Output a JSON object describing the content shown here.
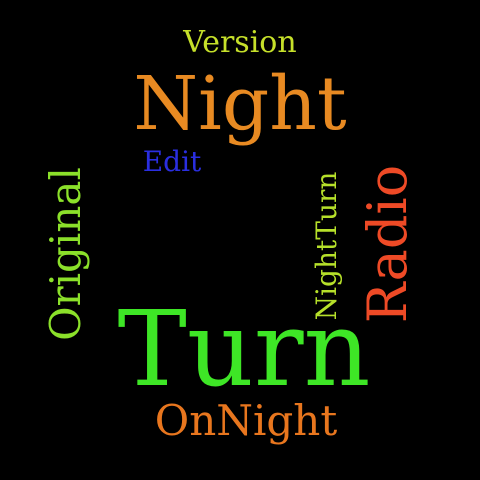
{
  "background_color": "#000000",
  "words": [
    {
      "id": "version",
      "text": "Version",
      "color": "#c6e02a"
    },
    {
      "id": "night",
      "text": "Night",
      "color": "#e88a22"
    },
    {
      "id": "edit",
      "text": "Edit",
      "color": "#2a2ee0"
    },
    {
      "id": "original",
      "text": "Original",
      "color": "#8be02a"
    },
    {
      "id": "nightturn",
      "text": "NightTurn",
      "color": "#b6e02a"
    },
    {
      "id": "radio",
      "text": "Radio",
      "color": "#ee4a26"
    },
    {
      "id": "turn",
      "text": "Turn",
      "color": "#3ee626"
    },
    {
      "id": "onnight",
      "text": "OnNight",
      "color": "#e8761e"
    }
  ]
}
